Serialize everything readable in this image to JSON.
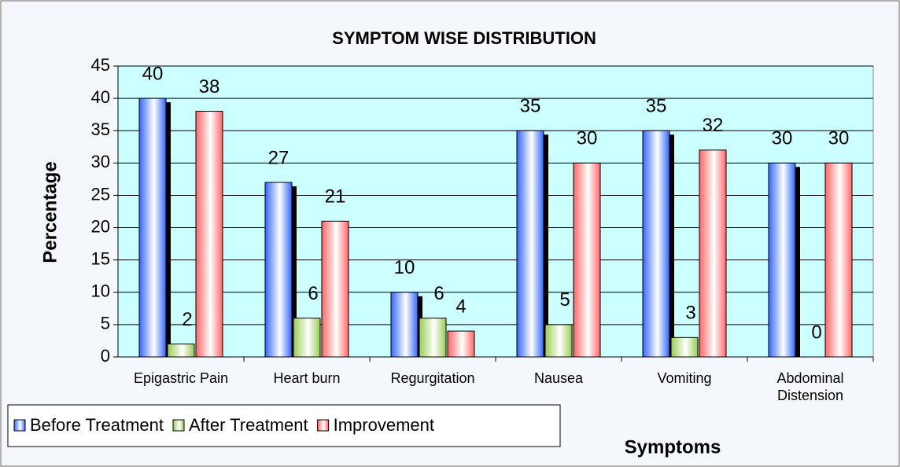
{
  "chart_data": {
    "type": "bar",
    "title": "SYMPTOM WISE DISTRIBUTION",
    "y_label": "Percentage",
    "x_label": "Symptoms",
    "categories": [
      "Epigastric Pain",
      "Heart burn",
      "Regurgitation",
      "Nausea",
      "Vomiting",
      "Abdominal Distension"
    ],
    "series": [
      {
        "name": "Before Treatment",
        "color": "#3366ff",
        "values": [
          40,
          27,
          10,
          35,
          35,
          30
        ]
      },
      {
        "name": "After Treatment",
        "color": "#99cc55",
        "values": [
          2,
          6,
          6,
          5,
          3,
          0
        ]
      },
      {
        "name": "Improvement",
        "color": "#ff6666",
        "values": [
          38,
          21,
          4,
          30,
          32,
          30
        ]
      }
    ],
    "ylim": [
      0,
      45
    ],
    "yticks": [
      0,
      5,
      10,
      15,
      20,
      25,
      30,
      35,
      40,
      45
    ],
    "grid": true,
    "legend": "bottom-left"
  }
}
